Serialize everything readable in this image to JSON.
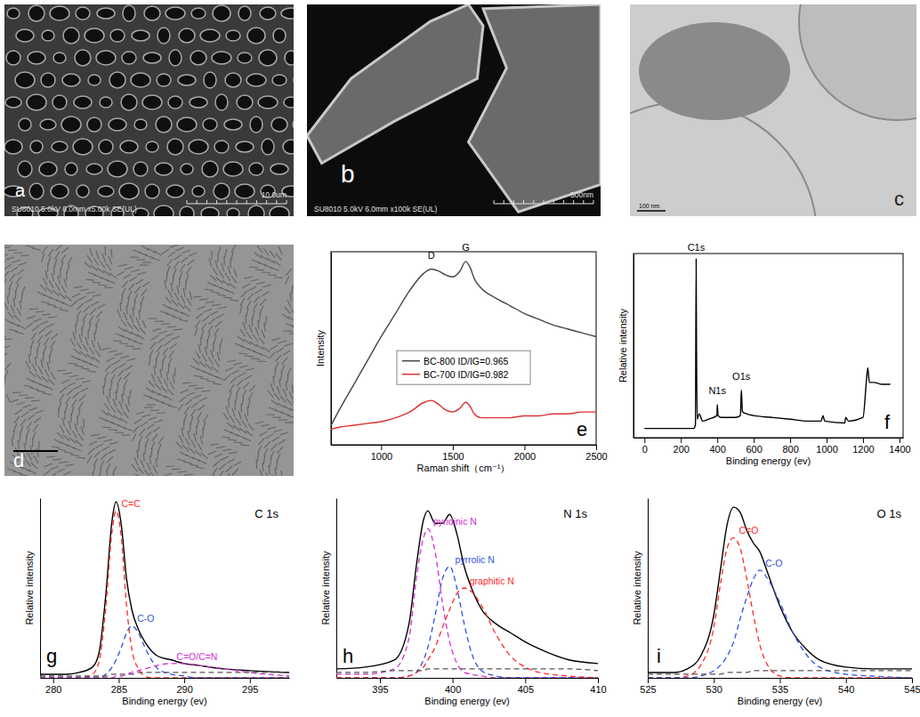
{
  "micrographs": [
    {
      "panel": "a",
      "caption": "SU8010 5.0kV 6.0mm x5.00k SE(UL)",
      "scale_bar": "10.0um"
    },
    {
      "panel": "b",
      "caption": "SU8010 5.0kV 6.0mm x100k SE(UL)",
      "scale_bar": "500nm"
    },
    {
      "panel": "c",
      "scale_bar": "100 nm"
    },
    {
      "panel": "d"
    }
  ],
  "chart_data": [
    {
      "type": "line",
      "panel": "e",
      "x_label": "Raman shift（cm⁻¹）",
      "y_label": "Intensity",
      "xlim": [
        650,
        2500
      ],
      "xticks": [
        1000,
        1500,
        2000,
        2500
      ],
      "ylim": [
        0,
        1
      ],
      "tick_labels": "x",
      "legend": "center",
      "x": [
        650,
        700,
        800,
        900,
        1000,
        1100,
        1200,
        1300,
        1350,
        1400,
        1450,
        1500,
        1550,
        1590,
        1620,
        1650,
        1700,
        1800,
        1900,
        2000,
        2100,
        2200,
        2300,
        2400,
        2500
      ],
      "series": [
        {
          "name": "BC-800  ID/IG=0.965",
          "color": "#444444",
          "line_style": "solid",
          "values": [
            0.1,
            0.17,
            0.3,
            0.43,
            0.56,
            0.68,
            0.8,
            0.89,
            0.91,
            0.9,
            0.88,
            0.87,
            0.9,
            0.95,
            0.92,
            0.86,
            0.81,
            0.76,
            0.72,
            0.68,
            0.65,
            0.62,
            0.6,
            0.58,
            0.56
          ]
        },
        {
          "name": "BC-700  ID/IG=0.982",
          "color": "#e03030",
          "line_style": "solid",
          "values": [
            0.08,
            0.09,
            0.1,
            0.11,
            0.12,
            0.14,
            0.17,
            0.22,
            0.23,
            0.21,
            0.18,
            0.17,
            0.19,
            0.22,
            0.2,
            0.16,
            0.14,
            0.14,
            0.14,
            0.15,
            0.15,
            0.16,
            0.16,
            0.17,
            0.17
          ]
        }
      ],
      "annotations": [
        {
          "text": "D",
          "x": 1350,
          "y": 0.95
        },
        {
          "text": "G",
          "x": 1590,
          "y": 0.99
        }
      ]
    },
    {
      "type": "line",
      "panel": "f",
      "x_label": "Binding energy (ev)",
      "y_label": "Relative intensity",
      "xlim": [
        -60,
        1420
      ],
      "xticks": [
        0,
        200,
        400,
        600,
        800,
        1000,
        1200,
        1400
      ],
      "ylim": [
        0,
        1
      ],
      "tick_labels": "x",
      "x": [
        0,
        100,
        200,
        270,
        280,
        284,
        285,
        290,
        300,
        320,
        350,
        398,
        400,
        404,
        420,
        500,
        527,
        532,
        538,
        560,
        600,
        700,
        800,
        900,
        970,
        980,
        990,
        1100,
        1105,
        1120,
        1200,
        1218,
        1226,
        1235,
        1260,
        1300,
        1350
      ],
      "series": [
        {
          "color": "#000000",
          "line_style": "solid",
          "values": [
            0.05,
            0.05,
            0.05,
            0.05,
            0.07,
            0.97,
            0.7,
            0.1,
            0.13,
            0.09,
            0.1,
            0.12,
            0.18,
            0.12,
            0.11,
            0.11,
            0.12,
            0.26,
            0.14,
            0.13,
            0.12,
            0.11,
            0.1,
            0.09,
            0.09,
            0.12,
            0.09,
            0.08,
            0.11,
            0.09,
            0.11,
            0.3,
            0.38,
            0.3,
            0.3,
            0.29,
            0.29
          ]
        }
      ],
      "annotations": [
        {
          "text": "C1s",
          "x": 284,
          "y": 1.0
        },
        {
          "text": "N1s",
          "x": 400,
          "y": 0.22
        },
        {
          "text": "O1s",
          "x": 532,
          "y": 0.3
        }
      ]
    },
    {
      "type": "line",
      "panel": "g",
      "title": "C 1s",
      "x_label": "Binding energy (ev)",
      "y_label": "Relative intensity",
      "xlim": [
        279,
        298
      ],
      "xticks": [
        280,
        285,
        290,
        295
      ],
      "ylim": [
        0,
        1
      ],
      "tick_labels": "x",
      "x": [
        279,
        281,
        282,
        283,
        283.5,
        284,
        284.5,
        284.8,
        285.2,
        285.6,
        286,
        286.5,
        287,
        287.5,
        288,
        289,
        290,
        291,
        293,
        295,
        298
      ],
      "series": [
        {
          "color": "#000000",
          "line_style": "solid",
          "values": [
            0.02,
            0.02,
            0.03,
            0.06,
            0.14,
            0.45,
            0.88,
            0.98,
            0.85,
            0.55,
            0.38,
            0.27,
            0.2,
            0.15,
            0.12,
            0.1,
            0.08,
            0.07,
            0.05,
            0.04,
            0.03
          ]
        },
        {
          "name": "C=C",
          "color": "#ff2a2a",
          "line_style": "dashed",
          "values": [
            0,
            0,
            0,
            0.02,
            0.09,
            0.38,
            0.82,
            0.93,
            0.78,
            0.4,
            0.16,
            0.05,
            0.01,
            0,
            0,
            0,
            0,
            0,
            0,
            0,
            0
          ]
        },
        {
          "name": "C-O",
          "color": "#3050e0",
          "line_style": "dashed",
          "values": [
            0,
            0,
            0,
            0,
            0,
            0.02,
            0.06,
            0.1,
            0.17,
            0.25,
            0.29,
            0.25,
            0.17,
            0.1,
            0.05,
            0.02,
            0.01,
            0,
            0,
            0,
            0
          ]
        },
        {
          "name": "C=O/C=N",
          "color": "#d030d0",
          "line_style": "dashed",
          "values": [
            0,
            0,
            0,
            0,
            0,
            0,
            0,
            0.01,
            0.01,
            0.02,
            0.03,
            0.04,
            0.05,
            0.06,
            0.07,
            0.08,
            0.08,
            0.07,
            0.05,
            0.03,
            0.01
          ]
        },
        {
          "color": "#555555",
          "line_style": "dashed",
          "values": [
            0.01,
            0.01,
            0.01,
            0.01,
            0.01,
            0.01,
            0.02,
            0.02,
            0.02,
            0.02,
            0.02,
            0.03,
            0.03,
            0.03,
            0.03,
            0.03,
            0.03,
            0.03,
            0.03,
            0.03,
            0.03
          ]
        }
      ]
    },
    {
      "type": "line",
      "panel": "h",
      "title": "N 1s",
      "x_label": "Binding energy (ev)",
      "y_label": "Relative intensity",
      "xlim": [
        392,
        410
      ],
      "xticks": [
        395,
        400,
        405,
        410
      ],
      "ylim": [
        0,
        1
      ],
      "tick_labels": "x",
      "x": [
        392,
        394,
        396,
        397,
        397.5,
        398,
        398.3,
        398.8,
        399.3,
        399.8,
        400.3,
        400.8,
        401.3,
        402,
        403,
        404,
        405,
        406,
        408,
        410
      ],
      "series": [
        {
          "color": "#000000",
          "line_style": "solid",
          "values": [
            0.05,
            0.06,
            0.1,
            0.3,
            0.62,
            0.88,
            0.93,
            0.86,
            0.86,
            0.91,
            0.8,
            0.62,
            0.5,
            0.38,
            0.3,
            0.25,
            0.2,
            0.16,
            0.1,
            0.08
          ]
        },
        {
          "name": "pyridinic N",
          "color": "#d030d0",
          "line_style": "dashed",
          "values": [
            0.02,
            0.02,
            0.05,
            0.22,
            0.55,
            0.78,
            0.83,
            0.7,
            0.42,
            0.2,
            0.08,
            0.03,
            0.02,
            0.01,
            0,
            0,
            0,
            0,
            0,
            0
          ]
        },
        {
          "name": "pyrrolic N",
          "color": "#3050e0",
          "line_style": "dashed",
          "values": [
            0,
            0,
            0,
            0.01,
            0.03,
            0.1,
            0.17,
            0.35,
            0.55,
            0.62,
            0.5,
            0.3,
            0.14,
            0.04,
            0.01,
            0,
            0,
            0,
            0,
            0
          ]
        },
        {
          "name": "graphitic N",
          "color": "#ff2a2a",
          "line_style": "dashed",
          "values": [
            0,
            0,
            0,
            0.01,
            0.03,
            0.06,
            0.1,
            0.17,
            0.28,
            0.38,
            0.47,
            0.5,
            0.48,
            0.4,
            0.24,
            0.12,
            0.06,
            0.03,
            0.01,
            0
          ]
        },
        {
          "color": "#555555",
          "line_style": "dashed",
          "values": [
            0.03,
            0.03,
            0.04,
            0.04,
            0.04,
            0.04,
            0.05,
            0.05,
            0.05,
            0.05,
            0.05,
            0.05,
            0.05,
            0.05,
            0.05,
            0.05,
            0.05,
            0.05,
            0.05,
            0.04
          ]
        }
      ]
    },
    {
      "type": "line",
      "panel": "i",
      "title": "O 1s",
      "x_label": "Binding energy (ev)",
      "y_label": "Relative intensity",
      "xlim": [
        525,
        545
      ],
      "xticks": [
        525,
        530,
        535,
        540,
        545
      ],
      "ylim": [
        0,
        1
      ],
      "tick_labels": "x",
      "x": [
        525,
        527,
        528,
        529,
        530,
        530.5,
        531,
        531.5,
        532,
        532.5,
        533,
        533.5,
        534,
        535,
        536,
        537,
        538,
        540,
        542,
        545
      ],
      "series": [
        {
          "color": "#000000",
          "line_style": "solid",
          "values": [
            0.03,
            0.03,
            0.05,
            0.12,
            0.35,
            0.6,
            0.85,
            0.95,
            0.92,
            0.82,
            0.75,
            0.7,
            0.6,
            0.4,
            0.25,
            0.16,
            0.1,
            0.06,
            0.05,
            0.05
          ]
        },
        {
          "name": "C=O",
          "color": "#ff2a2a",
          "line_style": "dashed",
          "values": [
            0,
            0,
            0.01,
            0.07,
            0.28,
            0.52,
            0.72,
            0.78,
            0.72,
            0.55,
            0.35,
            0.18,
            0.08,
            0.01,
            0,
            0,
            0,
            0,
            0,
            0
          ]
        },
        {
          "name": "C-O",
          "color": "#3050e0",
          "line_style": "dashed",
          "values": [
            0,
            0,
            0,
            0.01,
            0.04,
            0.07,
            0.12,
            0.2,
            0.33,
            0.45,
            0.55,
            0.6,
            0.56,
            0.42,
            0.25,
            0.13,
            0.06,
            0.02,
            0.01,
            0
          ]
        },
        {
          "color": "#555555",
          "line_style": "dashed",
          "values": [
            0.02,
            0.02,
            0.02,
            0.02,
            0.02,
            0.02,
            0.03,
            0.03,
            0.03,
            0.03,
            0.04,
            0.04,
            0.04,
            0.04,
            0.04,
            0.04,
            0.04,
            0.04,
            0.04,
            0.04
          ]
        }
      ]
    }
  ]
}
